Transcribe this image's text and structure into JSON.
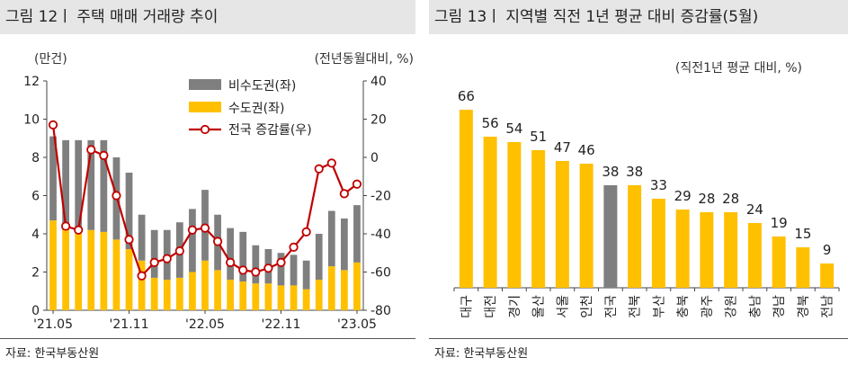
{
  "left_panel": {
    "title": "그림 12ㅣ 주택 매매 거래량 추이",
    "source": "자료: 한국부동산원"
  },
  "right_panel": {
    "title": "그림 13ㅣ 지역별 직전 1년 평균 대비 증감률(5월)",
    "source": "자료: 한국부동산원"
  },
  "chart_data": [
    {
      "type": "bar",
      "title": "그림 12ㅣ 주택 매매 거래량 추이",
      "left_unit": "(만건)",
      "right_unit": "(전년동월대비, %)",
      "ylim_left": [
        0,
        12
      ],
      "ylim_right": [
        -80,
        40
      ],
      "yticks_left": [
        "0",
        "2",
        "4",
        "6",
        "8",
        "10",
        "12"
      ],
      "yticks_right": [
        "-80",
        "-60",
        "-40",
        "-20",
        "0",
        "20",
        "40"
      ],
      "x_tick_labels": [
        "'21.05",
        "'21.11",
        "'22.05",
        "'22.11",
        "'23.05"
      ],
      "categories": [
        "2021-05",
        "2021-06",
        "2021-07",
        "2021-08",
        "2021-09",
        "2021-10",
        "2021-11",
        "2021-12",
        "2022-01",
        "2022-02",
        "2022-03",
        "2022-04",
        "2022-05",
        "2022-06",
        "2022-07",
        "2022-08",
        "2022-09",
        "2022-10",
        "2022-11",
        "2022-12",
        "2023-01",
        "2023-02",
        "2023-03",
        "2023-04",
        "2023-05"
      ],
      "series": [
        {
          "name": "비수도권(좌)",
          "kind": "stacked-bar",
          "color": "#7f7f7f",
          "values": [
            4.4,
            4.7,
            4.6,
            4.7,
            4.8,
            4.3,
            4.0,
            2.4,
            2.5,
            2.6,
            2.9,
            3.3,
            3.7,
            2.9,
            2.7,
            2.6,
            2.0,
            1.8,
            1.7,
            1.6,
            1.5,
            2.4,
            2.9,
            2.7,
            3.0
          ]
        },
        {
          "name": "수도권(좌)",
          "kind": "stacked-bar",
          "color": "#ffc000",
          "values": [
            4.7,
            4.2,
            4.3,
            4.2,
            4.1,
            3.7,
            3.2,
            2.6,
            1.7,
            1.6,
            1.7,
            2.0,
            2.6,
            2.1,
            1.6,
            1.5,
            1.4,
            1.4,
            1.3,
            1.3,
            1.1,
            1.6,
            2.3,
            2.1,
            2.5
          ]
        },
        {
          "name": "전국 증감률(우)",
          "kind": "line",
          "axis": "right",
          "color": "#c00000",
          "values": [
            17,
            -36,
            -38,
            4,
            1,
            -20,
            -43,
            -62,
            -55,
            -53,
            -49,
            -38,
            -37,
            -44,
            -55,
            -59,
            -60,
            -58,
            -55,
            -47,
            -39,
            -6,
            -3,
            -19,
            -14
          ]
        }
      ],
      "legend_position": "top-right"
    },
    {
      "type": "bar",
      "title": "그림 13ㅣ 지역별 직전 1년 평균 대비 증감률(5월)",
      "unit": "(직전1년 평균 대비, %)",
      "categories": [
        "대구",
        "대전",
        "경기",
        "울산",
        "서울",
        "인천",
        "전국",
        "전북",
        "부산",
        "충북",
        "광주",
        "강원",
        "충남",
        "경남",
        "경북",
        "전남"
      ],
      "values": [
        66,
        56,
        54,
        51,
        47,
        46,
        38,
        38,
        33,
        29,
        28,
        28,
        24,
        19,
        15,
        9
      ],
      "highlight_category": "전국",
      "bar_color": "#ffc000",
      "highlight_color": "#7f7f7f"
    }
  ]
}
